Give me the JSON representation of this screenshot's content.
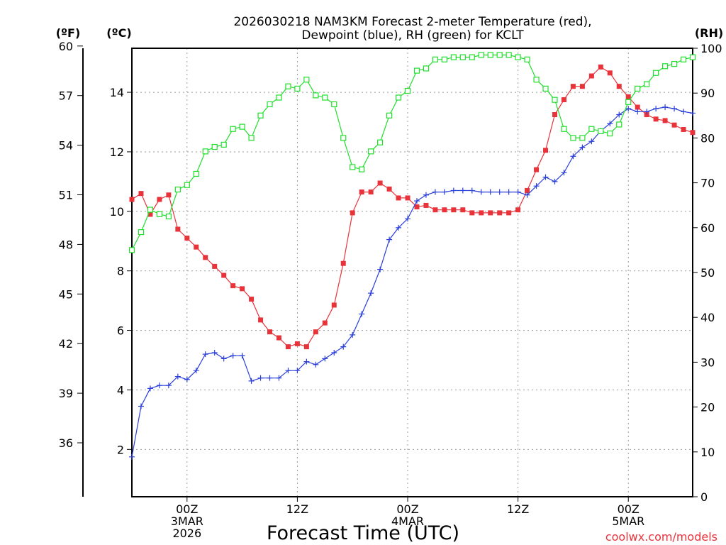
{
  "chart_data": {
    "type": "line",
    "title": [
      "2026030218 NAM3KM Forecast 2-meter Temperature (red),",
      "Dewpoint (blue), RH (green) for KCLT"
    ],
    "xlabel": "Forecast Time (UTC)",
    "left_axis_f_label": "(ºF)",
    "left_axis_c_label": "(ºC)",
    "right_axis_label": "(RH)",
    "credit": "coolwx.com/models",
    "x_range_hours": [
      0,
      61
    ],
    "ylim_c": [
      0.41,
      15.48
    ],
    "ylim_rh": [
      0,
      100
    ],
    "c_ticks": [
      2,
      4,
      6,
      8,
      10,
      12,
      14
    ],
    "f_ticks": [
      36,
      39,
      42,
      45,
      48,
      51,
      54,
      57,
      60
    ],
    "rh_ticks": [
      0,
      10,
      20,
      30,
      40,
      50,
      60,
      70,
      80,
      90,
      100
    ],
    "x_ticks": [
      {
        "h": 6,
        "lines": [
          "00Z",
          "3MAR",
          "2026"
        ]
      },
      {
        "h": 18,
        "lines": [
          "12Z"
        ]
      },
      {
        "h": 30,
        "lines": [
          "00Z",
          "4MAR"
        ]
      },
      {
        "h": 42,
        "lines": [
          "12Z"
        ]
      },
      {
        "h": 54,
        "lines": [
          "00Z",
          "5MAR"
        ]
      }
    ],
    "x_hours": [
      0,
      1,
      2,
      3,
      4,
      5,
      6,
      7,
      8,
      9,
      10,
      11,
      12,
      13,
      14,
      15,
      16,
      17,
      18,
      19,
      20,
      21,
      22,
      23,
      24,
      25,
      26,
      27,
      28,
      29,
      30,
      31,
      32,
      33,
      34,
      35,
      36,
      37,
      38,
      39,
      40,
      41,
      42,
      43,
      44,
      45,
      46,
      47,
      48,
      49,
      50,
      51,
      52,
      53,
      54,
      55,
      56,
      57,
      58,
      59,
      60,
      61
    ],
    "series": [
      {
        "name": "Temperature",
        "unit": "C",
        "color": "#e8333a",
        "marker": "filled-square",
        "values": [
          10.4,
          10.6,
          9.9,
          10.4,
          10.55,
          9.4,
          9.1,
          8.8,
          8.45,
          8.15,
          7.85,
          7.5,
          7.4,
          7.05,
          6.35,
          5.95,
          5.75,
          5.45,
          5.55,
          5.45,
          5.95,
          6.25,
          6.85,
          8.25,
          9.95,
          10.65,
          10.65,
          10.95,
          10.75,
          10.45,
          10.45,
          10.15,
          10.2,
          10.05,
          10.05,
          10.05,
          10.05,
          9.95,
          9.95,
          9.95,
          9.95,
          9.95,
          10.05,
          10.7,
          11.4,
          12.05,
          13.25,
          13.75,
          14.2,
          14.2,
          14.55,
          14.85,
          14.65,
          14.2,
          13.85,
          13.5,
          13.25,
          13.1,
          13.05,
          12.9,
          12.75,
          12.65
        ]
      },
      {
        "name": "Dewpoint",
        "unit": "C",
        "color": "#2b3fd9",
        "marker": "plus",
        "values": [
          1.75,
          3.45,
          4.05,
          4.15,
          4.15,
          4.45,
          4.35,
          4.65,
          5.2,
          5.25,
          5.05,
          5.15,
          5.15,
          4.3,
          4.4,
          4.4,
          4.4,
          4.65,
          4.65,
          4.95,
          4.85,
          5.05,
          5.25,
          5.45,
          5.85,
          6.55,
          7.25,
          8.05,
          9.05,
          9.45,
          9.75,
          10.35,
          10.55,
          10.65,
          10.65,
          10.7,
          10.7,
          10.7,
          10.65,
          10.65,
          10.65,
          10.65,
          10.65,
          10.55,
          10.85,
          11.15,
          11.0,
          11.3,
          11.85,
          12.15,
          12.35,
          12.7,
          12.95,
          13.25,
          13.45,
          13.35,
          13.35,
          13.45,
          13.5,
          13.45,
          13.35,
          13.3
        ]
      },
      {
        "name": "RH",
        "unit": "%",
        "color": "#1fdf2b",
        "marker": "open-square",
        "values": [
          55,
          59,
          64,
          63,
          62.5,
          68.5,
          69.5,
          72,
          77,
          78,
          78.5,
          82,
          82.5,
          80,
          85,
          87.5,
          89,
          91.5,
          91,
          93,
          89.5,
          89,
          87.5,
          80,
          73.5,
          73,
          77,
          79,
          85,
          89,
          90.5,
          95,
          95.5,
          97.5,
          97.5,
          98,
          98,
          98,
          98.5,
          98.5,
          98.5,
          98.5,
          98,
          97.5,
          93,
          91,
          88.5,
          82,
          80,
          80,
          82,
          81.5,
          81,
          83,
          88,
          91,
          92,
          94.5,
          96,
          96.5,
          97.5,
          98
        ]
      }
    ]
  }
}
